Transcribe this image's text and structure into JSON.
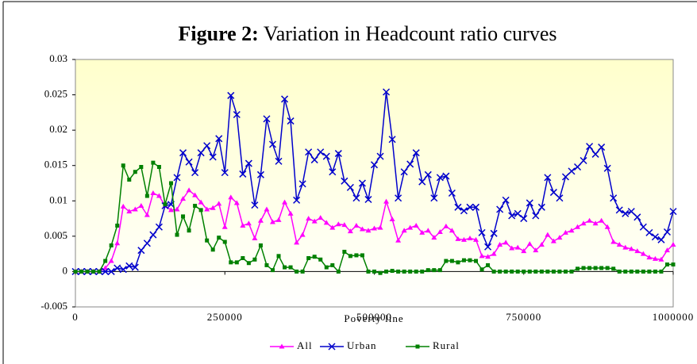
{
  "chart_data": {
    "type": "line",
    "figure_label": "Figure 2:",
    "title": "Variation in Headcount ratio curves",
    "xlabel": "Poverty line",
    "x": [
      0,
      10000,
      20000,
      30000,
      40000,
      50000,
      60000,
      70000,
      80000,
      90000,
      100000,
      110000,
      120000,
      130000,
      140000,
      150000,
      160000,
      170000,
      180000,
      190000,
      200000,
      210000,
      220000,
      230000,
      240000,
      250000,
      260000,
      270000,
      280000,
      290000,
      300000,
      310000,
      320000,
      330000,
      340000,
      350000,
      360000,
      370000,
      380000,
      390000,
      400000,
      410000,
      420000,
      430000,
      440000,
      450000,
      460000,
      470000,
      480000,
      490000,
      500000,
      510000,
      520000,
      530000,
      540000,
      550000,
      560000,
      570000,
      580000,
      590000,
      600000,
      610000,
      620000,
      630000,
      640000,
      650000,
      660000,
      670000,
      680000,
      690000,
      700000,
      710000,
      720000,
      730000,
      740000,
      750000,
      760000,
      770000,
      780000,
      790000,
      800000,
      810000,
      820000,
      830000,
      840000,
      850000,
      860000,
      870000,
      880000,
      890000,
      900000,
      910000,
      920000,
      930000,
      940000,
      950000,
      960000,
      970000,
      980000,
      990000,
      1000000
    ],
    "series": [
      {
        "name": "All",
        "color": "#ff00ff",
        "marker": "triangle",
        "values": [
          0,
          0,
          0,
          0,
          0,
          0.0005,
          0.0015,
          0.004,
          0.0092,
          0.0085,
          0.0088,
          0.0093,
          0.008,
          0.0111,
          0.0107,
          0.0093,
          0.0087,
          0.0088,
          0.0103,
          0.0115,
          0.0108,
          0.0098,
          0.0088,
          0.009,
          0.0096,
          0.0063,
          0.0105,
          0.0097,
          0.0065,
          0.0068,
          0.0047,
          0.0072,
          0.0088,
          0.007,
          0.0073,
          0.0098,
          0.0082,
          0.0041,
          0.0052,
          0.0075,
          0.0071,
          0.0076,
          0.0069,
          0.0062,
          0.0067,
          0.0066,
          0.0057,
          0.0065,
          0.006,
          0.0058,
          0.0061,
          0.0062,
          0.0099,
          0.0074,
          0.0044,
          0.0058,
          0.0062,
          0.0065,
          0.0055,
          0.0058,
          0.0048,
          0.0056,
          0.0064,
          0.0058,
          0.0046,
          0.0045,
          0.0047,
          0.0045,
          0.0022,
          0.0021,
          0.0025,
          0.0038,
          0.0041,
          0.0033,
          0.0034,
          0.0029,
          0.0039,
          0.003,
          0.0038,
          0.0052,
          0.0043,
          0.0048,
          0.0055,
          0.0058,
          0.0063,
          0.0068,
          0.0072,
          0.0068,
          0.0072,
          0.0063,
          0.0042,
          0.0038,
          0.0034,
          0.0032,
          0.0029,
          0.0025,
          0.002,
          0.0018,
          0.0017,
          0.003,
          0.0038
        ]
      },
      {
        "name": "Urban",
        "color": "#0000cc",
        "marker": "x",
        "values": [
          0,
          0,
          0,
          0,
          0,
          0,
          0,
          0.0005,
          0.0003,
          0.0008,
          0.0006,
          0.003,
          0.004,
          0.0052,
          0.0063,
          0.0093,
          0.0095,
          0.0133,
          0.0168,
          0.0155,
          0.014,
          0.0168,
          0.0178,
          0.0162,
          0.0188,
          0.014,
          0.0249,
          0.0222,
          0.0138,
          0.0153,
          0.0094,
          0.0137,
          0.0216,
          0.018,
          0.0156,
          0.0244,
          0.0213,
          0.0101,
          0.0124,
          0.0169,
          0.0158,
          0.0169,
          0.0163,
          0.0141,
          0.0167,
          0.0128,
          0.0119,
          0.0104,
          0.0125,
          0.0102,
          0.0151,
          0.0163,
          0.0254,
          0.0187,
          0.0104,
          0.0141,
          0.0152,
          0.0168,
          0.0127,
          0.0137,
          0.0104,
          0.0133,
          0.0135,
          0.0111,
          0.0091,
          0.0086,
          0.0091,
          0.0091,
          0.0055,
          0.0035,
          0.0054,
          0.0088,
          0.0101,
          0.0079,
          0.0082,
          0.0075,
          0.0097,
          0.0079,
          0.0091,
          0.0133,
          0.0112,
          0.0104,
          0.0134,
          0.0142,
          0.0148,
          0.0157,
          0.0177,
          0.0166,
          0.0176,
          0.0146,
          0.0104,
          0.0087,
          0.0082,
          0.0085,
          0.0077,
          0.0063,
          0.0055,
          0.0049,
          0.0045,
          0.0056,
          0.0085
        ]
      },
      {
        "name": "Rural",
        "color": "#008000",
        "marker": "square",
        "values": [
          0,
          0,
          0,
          0,
          0,
          0.0015,
          0.0037,
          0.0065,
          0.015,
          0.013,
          0.0141,
          0.0148,
          0.0107,
          0.0154,
          0.0148,
          0.0095,
          0.0125,
          0.0052,
          0.0078,
          0.0058,
          0.0093,
          0.0087,
          0.0044,
          0.0031,
          0.0048,
          0.0042,
          0.0013,
          0.0013,
          0.0019,
          0.0012,
          0.0017,
          0.0037,
          0.0009,
          0.0002,
          0.0022,
          0.0006,
          0.0006,
          0,
          0,
          0.0019,
          0.0021,
          0.0017,
          0.0006,
          0.0009,
          0,
          0.0028,
          0.0022,
          0.0023,
          0.0023,
          0,
          0,
          -0.0002,
          0,
          0.0001,
          0,
          0,
          0,
          0,
          0,
          0.0002,
          0.0002,
          0.0002,
          0.0015,
          0.0015,
          0.0013,
          0.0016,
          0.0016,
          0.0015,
          0.0003,
          0.0009,
          0,
          0,
          0,
          0,
          0,
          0,
          0,
          0,
          0,
          0,
          0,
          0,
          0,
          0,
          0.0004,
          0.0005,
          0.0005,
          0.0005,
          0.0005,
          0.0005,
          0.0004,
          0,
          0,
          0,
          0,
          0,
          0,
          0,
          0,
          0.001,
          0.001
        ]
      }
    ],
    "xlim": [
      0,
      1000000
    ],
    "xticks": [
      0,
      250000,
      500000,
      750000,
      1000000
    ],
    "ylim": [
      -0.005,
      0.03
    ],
    "yticks": [
      -0.005,
      0,
      0.005,
      0.01,
      0.015,
      0.02,
      0.025,
      0.03
    ],
    "legend": "bottom"
  }
}
